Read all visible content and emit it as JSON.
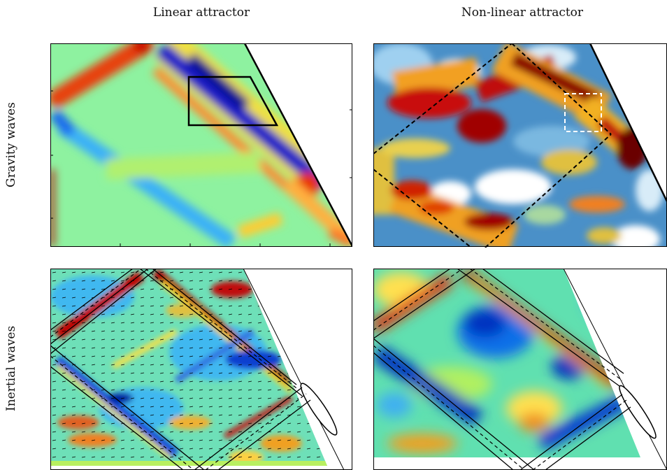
{
  "figure": {
    "columns": [
      "Linear attractor",
      "Non-linear attractor"
    ],
    "rows": [
      "Gravity waves",
      "Inertial waves"
    ]
  },
  "colormap": {
    "name": "jet",
    "stops": [
      "#00007f",
      "#0000ff",
      "#00a0ff",
      "#3fffc0",
      "#c0ff3f",
      "#ffd000",
      "#ff5000",
      "#c00000",
      "#7f0000"
    ]
  },
  "panels": [
    {
      "id": "gravity-linear",
      "overlay": "black-trapezoid-box"
    },
    {
      "id": "gravity-nonlinear",
      "overlay": "dashed-attractor-and-white-dashed-box"
    },
    {
      "id": "inertial-linear",
      "overlay": "attractor-beam-lines-with-velocity-arrows"
    },
    {
      "id": "inertial-nonlinear",
      "overlay": "attractor-beam-lines"
    }
  ]
}
